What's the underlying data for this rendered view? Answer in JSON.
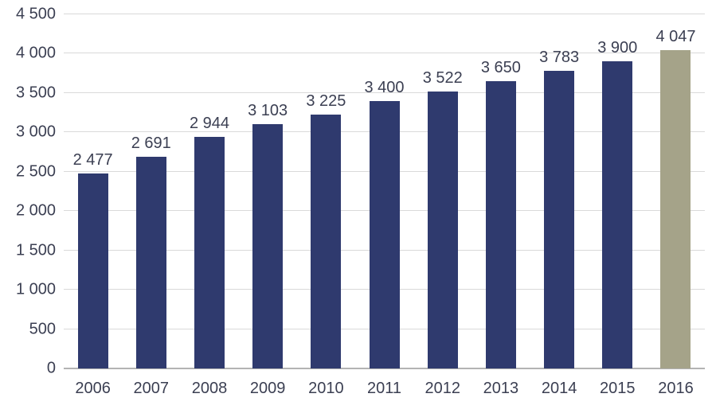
{
  "chart_data": {
    "type": "bar",
    "title": "",
    "xlabel": "",
    "ylabel": "",
    "categories": [
      "2006",
      "2007",
      "2008",
      "2009",
      "2010",
      "2011",
      "2012",
      "2013",
      "2014",
      "2015",
      "2016"
    ],
    "values": [
      2477,
      2691,
      2944,
      3103,
      3225,
      3400,
      3522,
      3650,
      3783,
      3900,
      4047
    ],
    "value_labels": [
      "2 477",
      "2 691",
      "2 944",
      "3 103",
      "3 225",
      "3 400",
      "3 522",
      "3 650",
      "3 783",
      "3 900",
      "4 047"
    ],
    "ylim": [
      0,
      4500
    ],
    "ytick_step": 500,
    "ytick_labels": [
      "0",
      "500",
      "1 000",
      "1 500",
      "2 000",
      "2 500",
      "3 000",
      "3 500",
      "4 000",
      "4 500"
    ],
    "grid": true,
    "legend": "none",
    "bar_color": "#2f3a6e",
    "highlight_bar_color": "#a5a389",
    "highlight_index": 10,
    "gridline_color": "#d9d9d9",
    "axis_line_color": "#b3b3b3",
    "text_color": "#3b3f52"
  }
}
